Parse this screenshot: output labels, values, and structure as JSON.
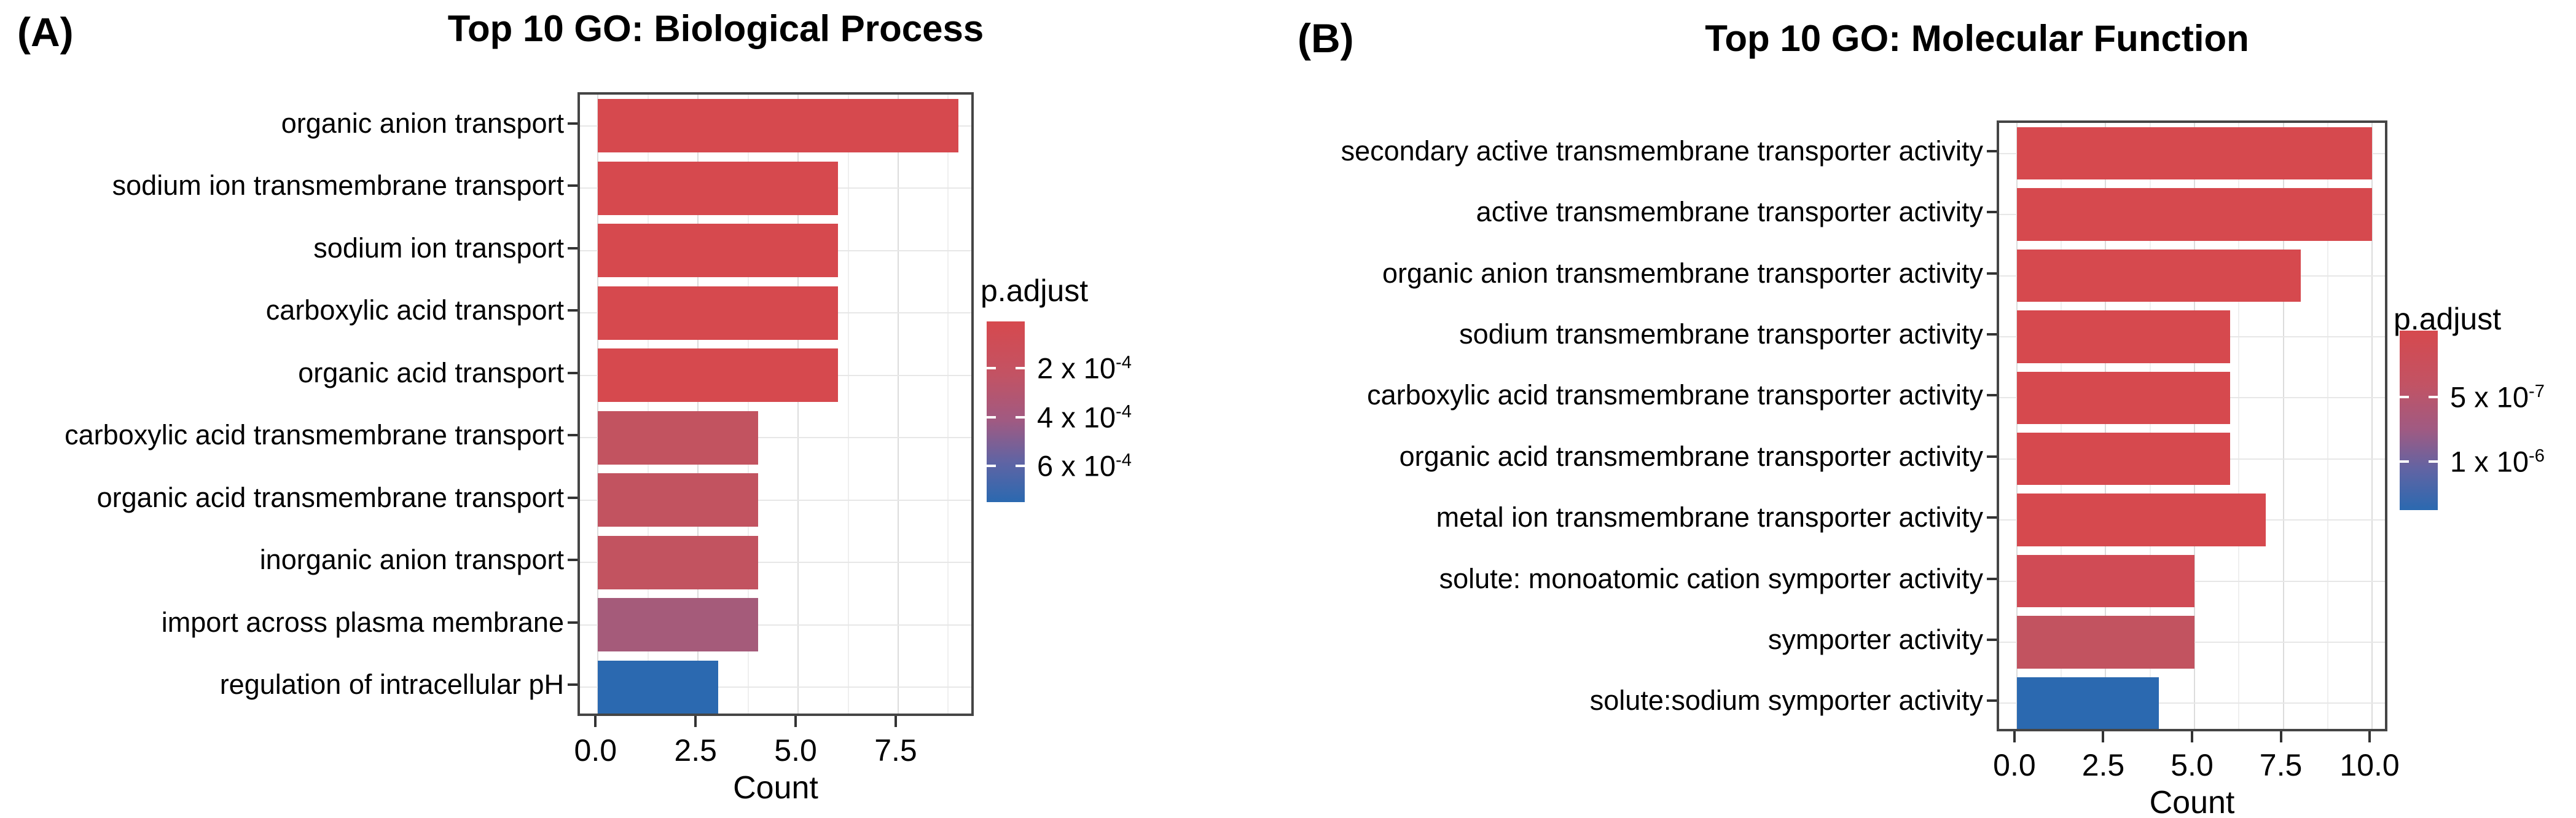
{
  "panels": [
    {
      "tag": "(A)"
    },
    {
      "tag": "(B)"
    }
  ],
  "chart_data": [
    {
      "type": "bar",
      "orientation": "horizontal",
      "title": "Top 10 GO: Biological Process",
      "xlabel": "Count",
      "xlim": [
        -0.45,
        9.45
      ],
      "x_ticks": [
        0,
        2.5,
        5,
        7.5
      ],
      "x_tick_labels": [
        "0.0",
        "2.5",
        "5.0",
        "7.5"
      ],
      "minor_gridlines": [
        1.25,
        3.75,
        6.25,
        8.75
      ],
      "categories": [
        "organic anion transport",
        "sodium ion transmembrane transport",
        "sodium ion transport",
        "carboxylic acid transport",
        "organic acid transport",
        "carboxylic acid transmembrane transport",
        "organic acid transmembrane transport",
        "inorganic anion transport",
        "import across plasma membrane",
        "regulation of intracellular pH"
      ],
      "values": [
        9,
        6,
        6,
        6,
        6,
        4,
        4,
        4,
        4,
        3
      ],
      "bar_colors": [
        "#d6494e",
        "#d6494e",
        "#d6494e",
        "#d6494e",
        "#d6494e",
        "#c25360",
        "#c25360",
        "#c25360",
        "#a55b7a",
        "#2b69b0"
      ],
      "legend": {
        "title": "p.adjust",
        "gradient_top_color": "#d6494e",
        "gradient_bottom_color": "#2b69b0",
        "ticks": [
          {
            "base": "2 x 10",
            "exp": "-4",
            "pos": 0.26
          },
          {
            "base": "4 x 10",
            "exp": "-4",
            "pos": 0.53
          },
          {
            "base": "6 x 10",
            "exp": "-4",
            "pos": 0.8
          }
        ]
      }
    },
    {
      "type": "bar",
      "orientation": "horizontal",
      "title": "Top 10 GO: Molecular Function",
      "xlabel": "Count",
      "xlim": [
        -0.5,
        10.5
      ],
      "x_ticks": [
        0,
        2.5,
        5,
        7.5,
        10
      ],
      "x_tick_labels": [
        "0.0",
        "2.5",
        "5.0",
        "7.5",
        "10.0"
      ],
      "minor_gridlines": [
        1.25,
        3.75,
        6.25,
        8.75
      ],
      "categories": [
        "secondary active transmembrane transporter activity",
        "active transmembrane transporter activity",
        "organic anion transmembrane transporter activity",
        "sodium transmembrane transporter activity",
        "carboxylic acid transmembrane transporter activity",
        "organic acid transmembrane transporter activity",
        "metal ion transmembrane transporter activity",
        "solute: monoatomic cation symporter activity",
        "symporter activity",
        "solute:sodium symporter activity"
      ],
      "values": [
        10,
        10,
        8,
        6,
        6,
        6,
        7,
        5,
        5,
        4
      ],
      "bar_colors": [
        "#d6494e",
        "#d6494e",
        "#d6494e",
        "#d6494e",
        "#d6494e",
        "#d6494e",
        "#d6494e",
        "#d04b55",
        "#c25360",
        "#2b69b0"
      ],
      "legend": {
        "title": "p.adjust",
        "gradient_top_color": "#d6494e",
        "gradient_bottom_color": "#2b69b0",
        "ticks": [
          {
            "base": "5 x 10",
            "exp": "-7",
            "pos": 0.37
          },
          {
            "base": "1 x 10",
            "exp": "-6",
            "pos": 0.73
          }
        ]
      }
    }
  ]
}
